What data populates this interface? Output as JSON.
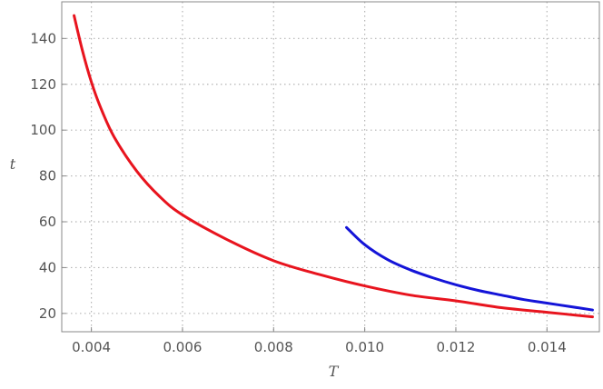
{
  "chart_data": {
    "type": "line",
    "title": "",
    "xlabel": "T",
    "ylabel": "t",
    "xlim": [
      0.00335,
      0.01515
    ],
    "ylim": [
      12,
      156
    ],
    "grid": true,
    "x_ticks": [
      0.004,
      0.006,
      0.008,
      0.01,
      0.012,
      0.014
    ],
    "x_tick_labels": [
      "0.004",
      "0.006",
      "0.008",
      "0.010",
      "0.012",
      "0.014"
    ],
    "y_ticks": [
      20,
      40,
      60,
      80,
      100,
      120,
      140
    ],
    "y_tick_labels": [
      "20",
      "40",
      "60",
      "80",
      "100",
      "120",
      "140"
    ],
    "series": [
      {
        "color": "#e8141e",
        "x": [
          0.00362,
          0.0038,
          0.004,
          0.0042,
          0.0045,
          0.005,
          0.0055,
          0.006,
          0.007,
          0.008,
          0.009,
          0.01,
          0.011,
          0.012,
          0.013,
          0.014,
          0.015
        ],
        "y": [
          150,
          135,
          121,
          110,
          97,
          82,
          71,
          63,
          52,
          43,
          37,
          32,
          28,
          25.5,
          22.5,
          20.5,
          18.5
        ]
      },
      {
        "color": "#1414d8",
        "x": [
          0.0096,
          0.01,
          0.0105,
          0.011,
          0.0115,
          0.012,
          0.0125,
          0.013,
          0.0135,
          0.014,
          0.0145,
          0.015
        ],
        "y": [
          57.5,
          50,
          43.5,
          39,
          35.5,
          32.5,
          30,
          28,
          26,
          24.5,
          23,
          21.5
        ]
      }
    ]
  }
}
